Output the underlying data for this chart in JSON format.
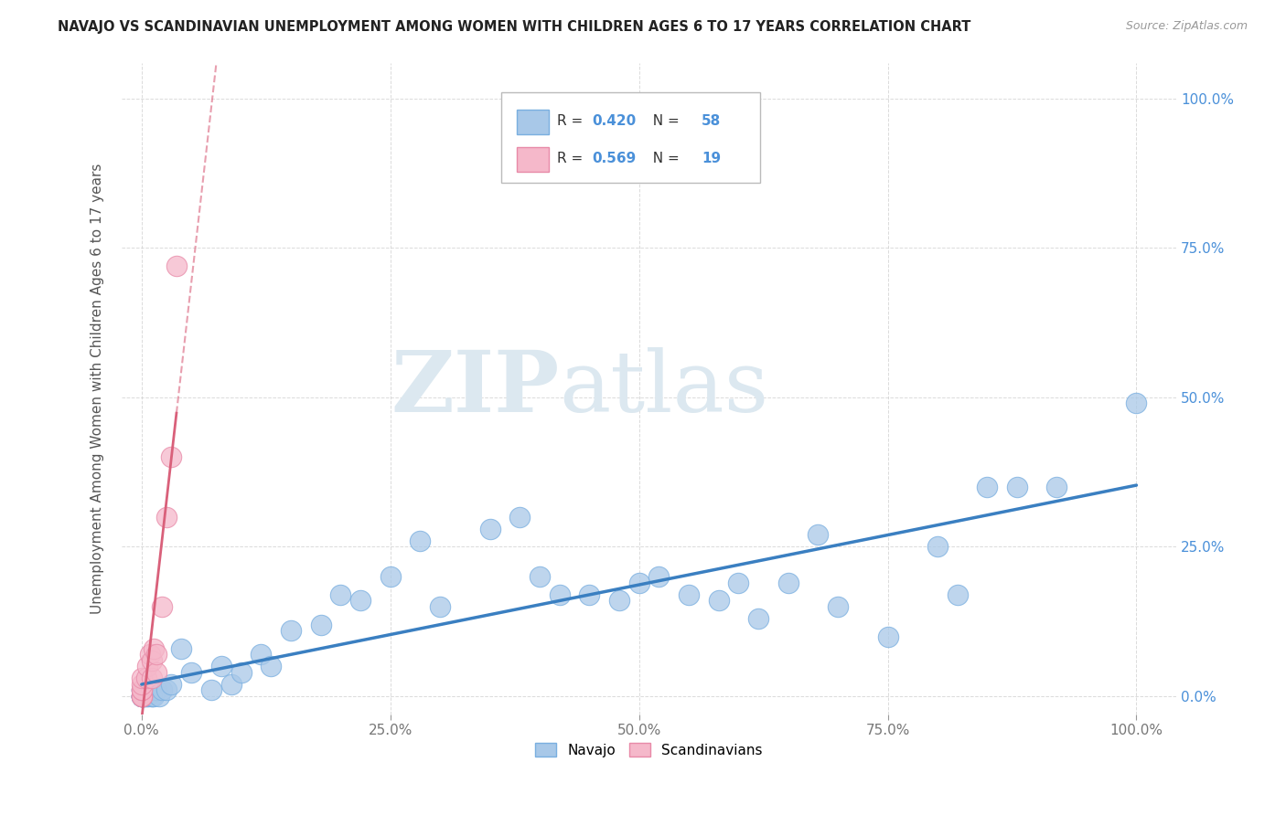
{
  "title": "NAVAJO VS SCANDINAVIAN UNEMPLOYMENT AMONG WOMEN WITH CHILDREN AGES 6 TO 17 YEARS CORRELATION CHART",
  "source": "Source: ZipAtlas.com",
  "ylabel": "Unemployment Among Women with Children Ages 6 to 17 years",
  "watermark_zip": "ZIP",
  "watermark_atlas": "atlas",
  "navajo_R": 0.42,
  "navajo_N": 58,
  "scand_R": 0.569,
  "scand_N": 19,
  "navajo_color": "#a8c8e8",
  "navajo_edge_color": "#7aafe0",
  "navajo_line_color": "#3a7fc1",
  "scand_color": "#f5b8ca",
  "scand_edge_color": "#e88aa8",
  "scand_line_color": "#d9607a",
  "navajo_x": [
    0.0,
    0.0,
    0.0,
    0.0,
    0.0,
    0.0,
    0.0,
    0.0,
    0.002,
    0.002,
    0.003,
    0.005,
    0.007,
    0.01,
    0.01,
    0.012,
    0.015,
    0.018,
    0.02,
    0.025,
    0.03,
    0.04,
    0.05,
    0.07,
    0.08,
    0.09,
    0.1,
    0.12,
    0.13,
    0.15,
    0.18,
    0.2,
    0.22,
    0.25,
    0.28,
    0.3,
    0.35,
    0.38,
    0.4,
    0.42,
    0.45,
    0.48,
    0.5,
    0.52,
    0.55,
    0.58,
    0.6,
    0.62,
    0.65,
    0.68,
    0.7,
    0.75,
    0.8,
    0.82,
    0.85,
    0.88,
    0.92,
    1.0
  ],
  "navajo_y": [
    0.0,
    0.0,
    0.0,
    0.0,
    0.0,
    0.0,
    0.01,
    0.01,
    0.0,
    0.0,
    0.0,
    0.0,
    0.0,
    0.0,
    0.0,
    0.0,
    0.01,
    0.0,
    0.01,
    0.01,
    0.02,
    0.08,
    0.04,
    0.01,
    0.05,
    0.02,
    0.04,
    0.07,
    0.05,
    0.11,
    0.12,
    0.17,
    0.16,
    0.2,
    0.26,
    0.15,
    0.28,
    0.3,
    0.2,
    0.17,
    0.17,
    0.16,
    0.19,
    0.2,
    0.17,
    0.16,
    0.19,
    0.13,
    0.19,
    0.27,
    0.15,
    0.1,
    0.25,
    0.17,
    0.35,
    0.35,
    0.35,
    0.49
  ],
  "scand_x": [
    0.0,
    0.0,
    0.0,
    0.0,
    0.0,
    0.0,
    0.0,
    0.005,
    0.006,
    0.008,
    0.01,
    0.01,
    0.012,
    0.015,
    0.015,
    0.02,
    0.025,
    0.03,
    0.035
  ],
  "scand_y": [
    0.0,
    0.0,
    0.0,
    0.01,
    0.01,
    0.02,
    0.03,
    0.03,
    0.05,
    0.07,
    0.03,
    0.06,
    0.08,
    0.04,
    0.07,
    0.15,
    0.3,
    0.4,
    0.72
  ],
  "xlim": [
    -0.02,
    1.04
  ],
  "ylim": [
    -0.03,
    1.06
  ],
  "xticks": [
    0.0,
    0.25,
    0.5,
    0.75,
    1.0
  ],
  "yticks": [
    0.0,
    0.25,
    0.5,
    0.75,
    1.0
  ],
  "xticklabels": [
    "0.0%",
    "25.0%",
    "50.0%",
    "75.0%",
    "100.0%"
  ],
  "yticklabels": [
    "0.0%",
    "25.0%",
    "50.0%",
    "75.0%",
    "100.0%"
  ],
  "legend_navajo": "Navajo",
  "legend_scand": "Scandinavians",
  "background_color": "#ffffff",
  "grid_color": "#cccccc"
}
